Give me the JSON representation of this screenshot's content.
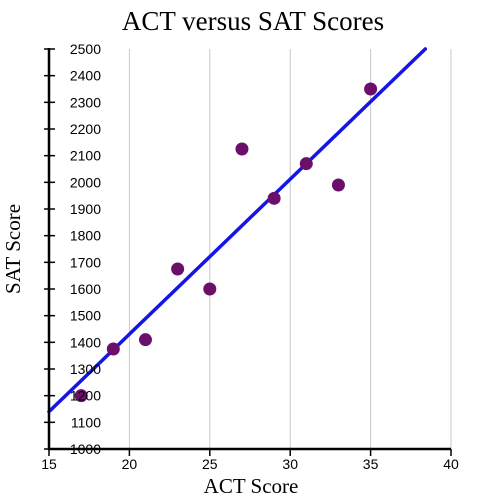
{
  "chart_data": {
    "type": "scatter",
    "title": "ACT versus SAT Scores",
    "xlabel": "ACT Score",
    "ylabel": "SAT Score",
    "xlim": [
      15,
      40
    ],
    "ylim": [
      1000,
      2500
    ],
    "x_ticks": [
      15,
      20,
      25,
      30,
      35,
      40
    ],
    "y_ticks": [
      1000,
      1100,
      1200,
      1300,
      1400,
      1500,
      1600,
      1700,
      1800,
      1900,
      2000,
      2100,
      2200,
      2300,
      2400,
      2500
    ],
    "grid": true,
    "series": [
      {
        "type": "scatter",
        "color": "#6b0f6b",
        "points": [
          {
            "x": 17,
            "y": 1200
          },
          {
            "x": 19,
            "y": 1375
          },
          {
            "x": 21,
            "y": 1410
          },
          {
            "x": 23,
            "y": 1675
          },
          {
            "x": 25,
            "y": 1600
          },
          {
            "x": 27,
            "y": 2125
          },
          {
            "x": 29,
            "y": 1940
          },
          {
            "x": 31,
            "y": 2070
          },
          {
            "x": 33,
            "y": 1990
          },
          {
            "x": 35,
            "y": 2350
          }
        ]
      },
      {
        "type": "line",
        "color": "#1515e6",
        "points": [
          {
            "x": 15,
            "y": 1140
          },
          {
            "x": 38.4,
            "y": 2500
          }
        ]
      }
    ]
  }
}
